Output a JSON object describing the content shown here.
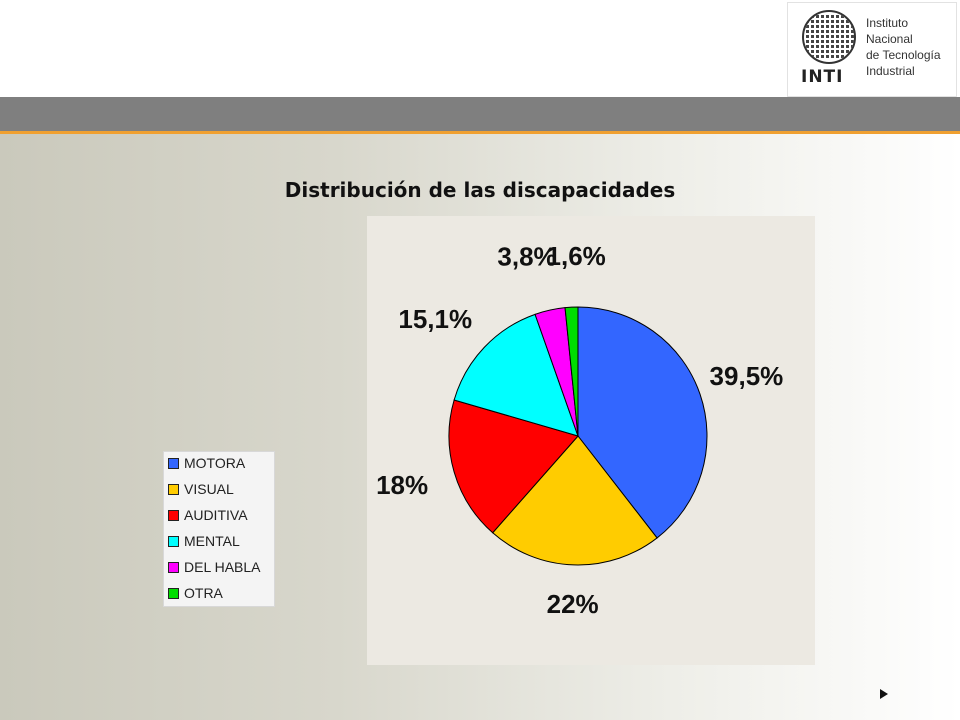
{
  "logo": {
    "lines": [
      "Instituto",
      "Nacional",
      "de Tecnología",
      "Industrial"
    ],
    "abbr": "INTI"
  },
  "chart_data": {
    "type": "pie",
    "title": "Distribución de las discapacidades",
    "categories": [
      "MOTORA",
      "VISUAL",
      "AUDITIVA",
      "MENTAL",
      "DEL HABLA",
      "OTRA"
    ],
    "values": [
      39.5,
      22,
      18,
      15.1,
      3.8,
      1.6
    ],
    "data_labels": [
      "39,5%",
      "22%",
      "18%",
      "15,1%",
      "3,8%",
      "1,6%"
    ],
    "colors": [
      "#3366ff",
      "#ffcc00",
      "#ff0000",
      "#00ffff",
      "#ff00ff",
      "#00dd00"
    ],
    "legend_position": "left"
  }
}
